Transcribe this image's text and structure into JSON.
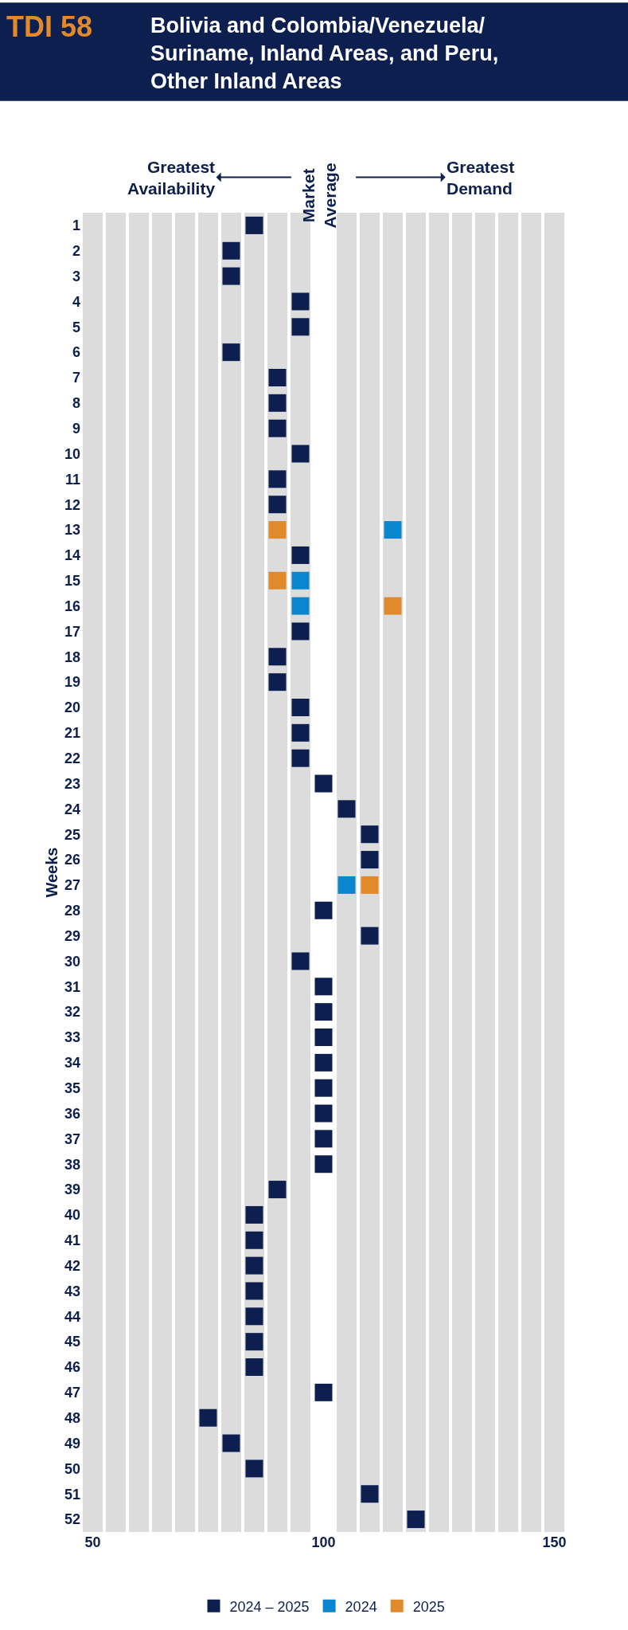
{
  "chart_data": {
    "type": "scatter",
    "title": "TDI 58",
    "subtitle": "Bolivia and Colombia/Venezuela/ Suriname, Inland Areas, and Peru, Other Inland Areas",
    "ylabel": "Weeks",
    "annotations": [
      "Greatest Availability",
      "Market Average",
      "Greatest Demand"
    ],
    "xlim": [
      47.5,
      152.5
    ],
    "xticks": [
      50,
      100,
      150
    ],
    "ylim": [
      52.5,
      0.5
    ],
    "yticks": [
      1,
      2,
      3,
      4,
      5,
      6,
      7,
      8,
      9,
      10,
      11,
      12,
      13,
      14,
      15,
      16,
      17,
      18,
      19,
      20,
      21,
      22,
      23,
      24,
      25,
      26,
      27,
      28,
      29,
      30,
      31,
      32,
      33,
      34,
      35,
      36,
      37,
      38,
      39,
      40,
      41,
      42,
      43,
      44,
      45,
      46,
      47,
      48,
      49,
      50,
      51,
      52
    ],
    "marker": "square",
    "grid": "x",
    "legend": "bottom",
    "bands": [
      {
        "axis": "x",
        "from": 97.5,
        "to": 102.5,
        "color": "#ffffff"
      }
    ],
    "series": [
      {
        "name": "2024 – 2025",
        "color": "#0c1f4f",
        "x": [
          85,
          80,
          80,
          95,
          95,
          80,
          90,
          90,
          90,
          95,
          90,
          90,
          95,
          95,
          90,
          90,
          95,
          95,
          95,
          100,
          105,
          110,
          110,
          100,
          110,
          95,
          100,
          100,
          100,
          100,
          100,
          100,
          100,
          100,
          90,
          85,
          85,
          85,
          85,
          85,
          85,
          85,
          100,
          75,
          80,
          85,
          110,
          120
        ],
        "values": [
          1,
          2,
          3,
          4,
          5,
          6,
          7,
          8,
          9,
          10,
          11,
          12,
          14,
          17,
          18,
          19,
          20,
          21,
          22,
          23,
          24,
          25,
          26,
          28,
          29,
          30,
          31,
          32,
          33,
          34,
          35,
          36,
          37,
          38,
          39,
          40,
          41,
          42,
          43,
          44,
          45,
          46,
          47,
          48,
          49,
          50,
          51,
          52
        ]
      },
      {
        "name": "2024",
        "color": "#0a86cf",
        "x": [
          115,
          95,
          95,
          105
        ],
        "values": [
          13,
          15,
          16,
          27
        ]
      },
      {
        "name": "2025",
        "color": "#e08a2c",
        "x": [
          90,
          90,
          115,
          110
        ],
        "values": [
          13,
          15,
          16,
          27
        ]
      }
    ]
  }
}
